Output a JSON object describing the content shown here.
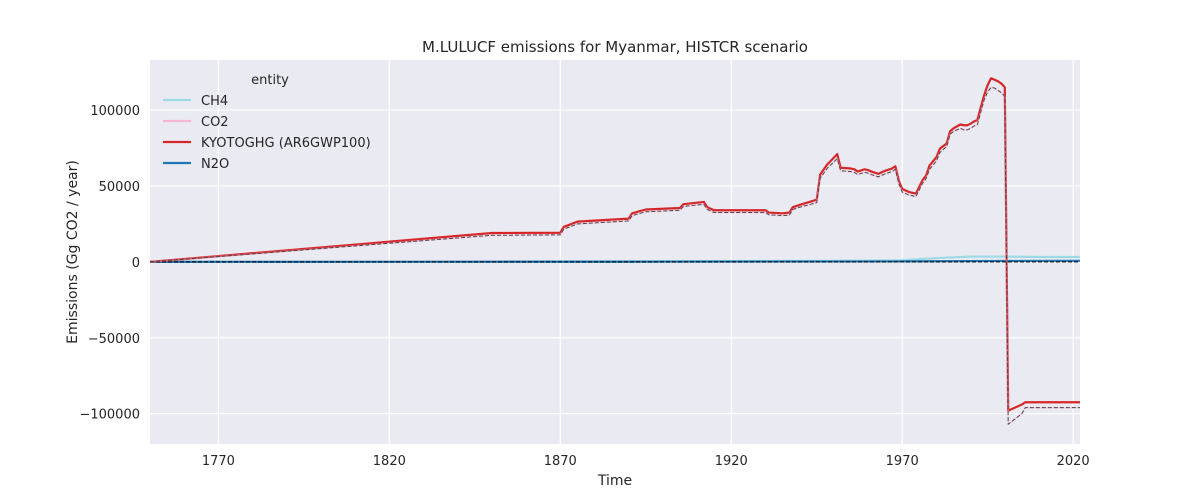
{
  "chart_data": {
    "type": "line",
    "title": "M.LULUCF emissions for Myanmar, HISTCR scenario",
    "xlabel": "Time",
    "ylabel": "Emissions (Gg CO2 / year)",
    "xlim": [
      1750,
      2022
    ],
    "ylim": [
      -120000,
      133000
    ],
    "x_ticks": [
      1770,
      1820,
      1870,
      1920,
      1970,
      2020
    ],
    "y_ticks": [
      100000,
      50000,
      0,
      -50000,
      -100000
    ],
    "y_tick_labels": [
      "100000",
      "50000",
      "0",
      "−50000",
      "−100000"
    ],
    "grid": true,
    "legend": {
      "title": "entity",
      "placement": "top-left",
      "entries": [
        "CH4",
        "CO2",
        "KYOTOGHG (AR6GWP100)",
        "N2O"
      ]
    },
    "series": [
      {
        "name": "CH4",
        "color": "#9edae5",
        "style": "solid",
        "x": [
          1750,
          1850,
          1900,
          1950,
          1970,
          1980,
          1990,
          2000,
          2010,
          2022
        ],
        "y": [
          0,
          200,
          400,
          700,
          1000,
          2500,
          3500,
          3500,
          3200,
          3200
        ]
      },
      {
        "name": "CO2",
        "color": "#f7b6d2",
        "style": "solid",
        "x": [
          1750,
          1850,
          1870,
          1871,
          1875,
          1890,
          1891,
          1895,
          1905,
          1906,
          1910,
          1912,
          1913,
          1915,
          1930,
          1931,
          1935,
          1937,
          1938,
          1940,
          1945,
          1946,
          1948,
          1951,
          1952,
          1955,
          1956,
          1957,
          1959,
          1960,
          1961,
          1963,
          1965,
          1967,
          1968,
          1969,
          1970,
          1971,
          1972,
          1974,
          1976,
          1977,
          1978,
          1980,
          1981,
          1983,
          1984,
          1985,
          1987,
          1988,
          1989,
          1990,
          1991,
          1992,
          1993,
          1994,
          1995,
          1996,
          1997,
          1998,
          1999,
          2000,
          2001,
          2005,
          2006,
          2022
        ],
        "y": [
          0,
          17500,
          17800,
          21500,
          25000,
          27000,
          30500,
          33000,
          34000,
          36500,
          37500,
          37800,
          34500,
          32500,
          32500,
          31000,
          30500,
          30800,
          34500,
          36000,
          39000,
          55000,
          61500,
          68000,
          60000,
          59500,
          59000,
          57500,
          59000,
          58500,
          57500,
          56000,
          58000,
          59500,
          61000,
          51500,
          46000,
          45000,
          44000,
          43000,
          52000,
          55000,
          61000,
          66500,
          72000,
          76000,
          84000,
          86000,
          88000,
          87000,
          87000,
          88000,
          89500,
          90500,
          99000,
          107000,
          112000,
          115000,
          114500,
          113000,
          111500,
          109000,
          -107000,
          -100000,
          -96000,
          -96000
        ]
      },
      {
        "name": "KYOTOGHG (AR6GWP100)",
        "color": "#d62728",
        "style": "solid",
        "x": [
          1750,
          1850,
          1870,
          1871,
          1875,
          1890,
          1891,
          1895,
          1905,
          1906,
          1910,
          1912,
          1913,
          1915,
          1930,
          1931,
          1935,
          1937,
          1938,
          1940,
          1945,
          1946,
          1948,
          1951,
          1952,
          1955,
          1956,
          1957,
          1959,
          1960,
          1961,
          1963,
          1965,
          1967,
          1968,
          1969,
          1970,
          1971,
          1972,
          1974,
          1976,
          1977,
          1978,
          1980,
          1981,
          1983,
          1984,
          1985,
          1987,
          1988,
          1989,
          1990,
          1991,
          1992,
          1993,
          1994,
          1995,
          1996,
          1997,
          1998,
          1999,
          2000,
          2001,
          2005,
          2006,
          2022
        ],
        "y": [
          0,
          19000,
          19200,
          23000,
          26500,
          28500,
          32000,
          34500,
          35500,
          38000,
          39000,
          39500,
          36000,
          34000,
          34000,
          32500,
          32000,
          32500,
          36000,
          37500,
          41000,
          57500,
          64000,
          71000,
          62000,
          61500,
          61000,
          59500,
          61000,
          60500,
          59500,
          58000,
          60000,
          61500,
          63000,
          53500,
          48000,
          47000,
          46000,
          45000,
          54000,
          57000,
          63500,
          69000,
          74500,
          78000,
          86000,
          88000,
          90500,
          90000,
          90000,
          91000,
          92500,
          93500,
          102000,
          110000,
          116500,
          121000,
          120000,
          119000,
          117500,
          115000,
          -98000,
          -94000,
          -92500,
          -92500
        ]
      },
      {
        "name": "N2O",
        "color": "#1f77b4",
        "style": "solid",
        "x": [
          1750,
          1900,
          1970,
          2000,
          2022
        ],
        "y": [
          0,
          100,
          300,
          600,
          700
        ]
      },
      {
        "name": "",
        "color": "#000000",
        "style": "dashed",
        "x": [
          1750,
          1850,
          1870,
          1871,
          1875,
          1890,
          1891,
          1895,
          1905,
          1906,
          1910,
          1912,
          1913,
          1915,
          1930,
          1931,
          1935,
          1937,
          1938,
          1940,
          1945,
          1946,
          1948,
          1951,
          1952,
          1955,
          1956,
          1957,
          1959,
          1960,
          1961,
          1963,
          1965,
          1967,
          1968,
          1969,
          1970,
          1971,
          1972,
          1974,
          1976,
          1977,
          1978,
          1980,
          1981,
          1983,
          1984,
          1985,
          1987,
          1988,
          1989,
          1990,
          1991,
          1992,
          1993,
          1994,
          1995,
          1996,
          1997,
          1998,
          1999,
          2000,
          2001,
          2005,
          2006,
          2022
        ],
        "y": [
          0,
          17500,
          17800,
          21500,
          25000,
          27000,
          30500,
          33000,
          34000,
          36500,
          37500,
          37800,
          34500,
          32500,
          32500,
          31000,
          30500,
          30800,
          34500,
          36000,
          39000,
          55000,
          61500,
          68000,
          60000,
          59500,
          59000,
          57500,
          59000,
          58500,
          57500,
          56000,
          58000,
          59500,
          61000,
          51500,
          46000,
          45000,
          44000,
          43000,
          52000,
          55000,
          61000,
          66500,
          72000,
          76000,
          84000,
          86000,
          88000,
          87000,
          87000,
          88000,
          89500,
          90500,
          99000,
          107000,
          112000,
          115000,
          114500,
          113000,
          111500,
          109000,
          -107000,
          -100000,
          -96000,
          -96000
        ]
      },
      {
        "name": "",
        "color": "#000000",
        "style": "dashed",
        "x": [
          1750,
          2022
        ],
        "y": [
          0,
          0
        ]
      }
    ]
  }
}
